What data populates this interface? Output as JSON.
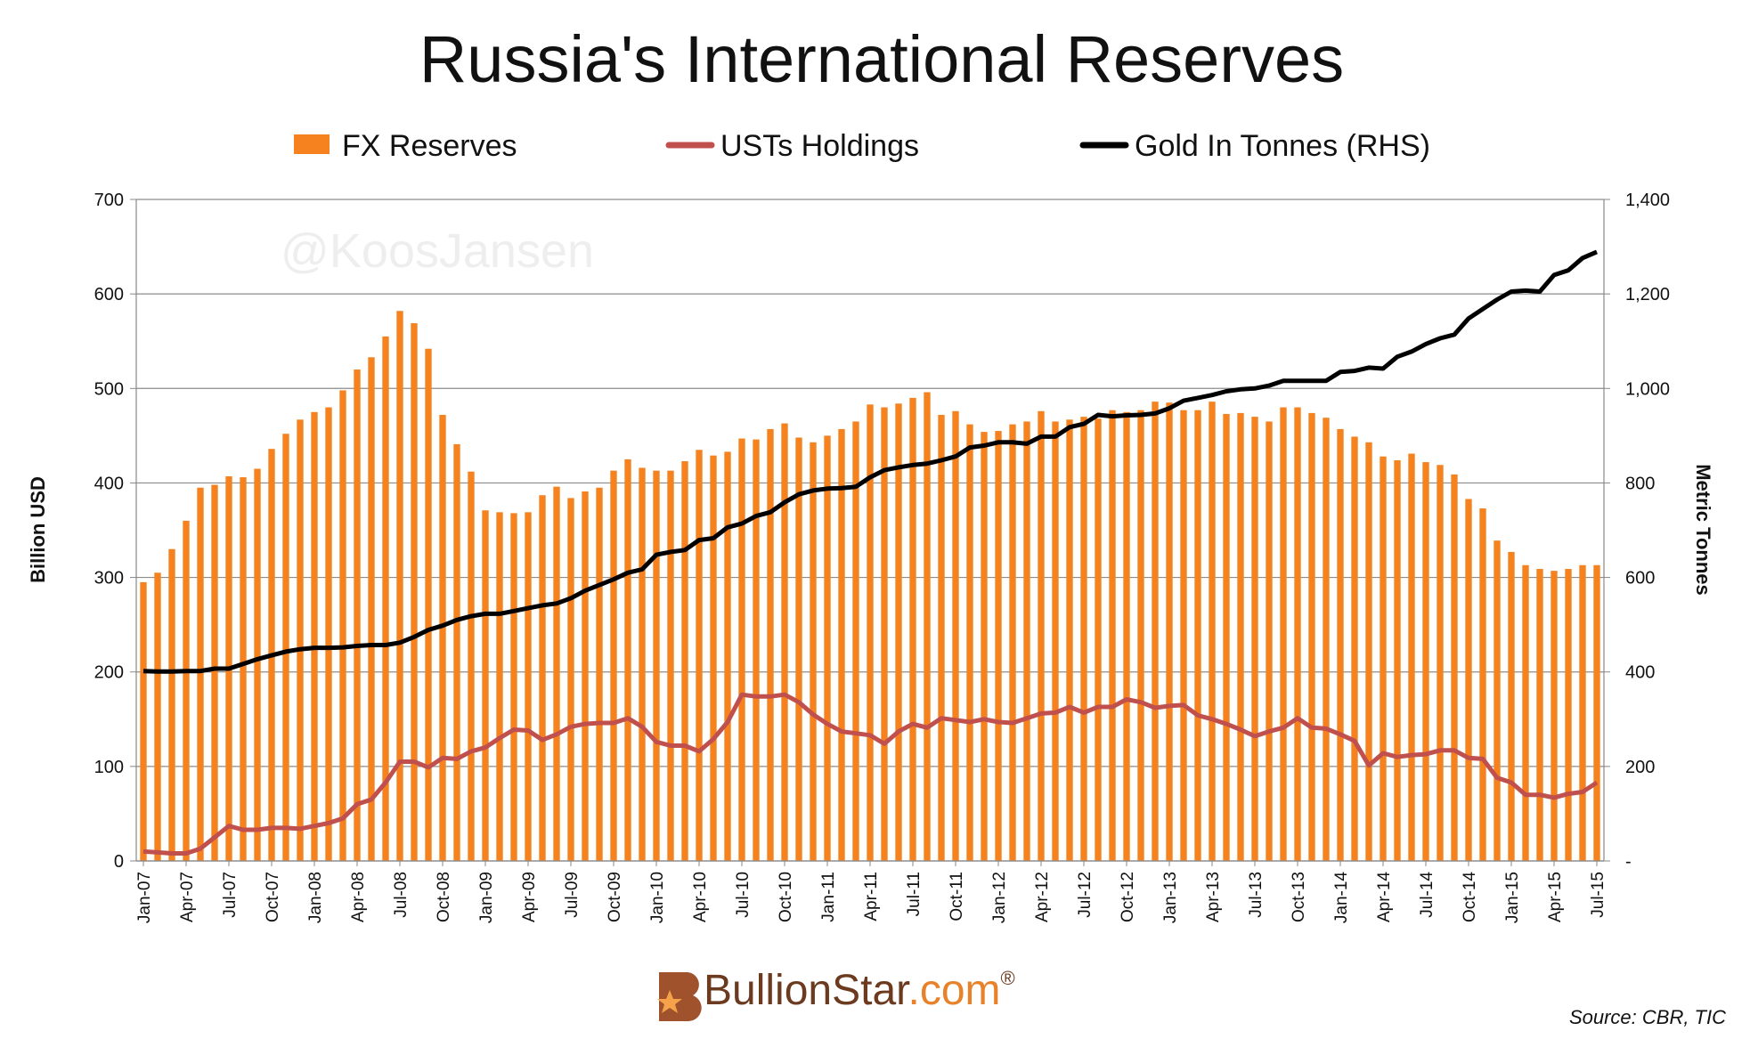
{
  "chart_data": {
    "type": "bar",
    "title": "Russia's International Reserves",
    "watermark": "@KoosJansen",
    "ylabel": "Billion USD",
    "y2label": "Metric Tonnes",
    "source": "Source: CBR, TIC",
    "logo": {
      "part1": "BullionStar",
      "part2": ".com",
      "mark": "®"
    },
    "grid": true,
    "categories": [
      "Jan-07",
      null,
      null,
      "Apr-07",
      null,
      null,
      "Jul-07",
      null,
      null,
      "Oct-07",
      null,
      null,
      "Jan-08",
      null,
      null,
      "Apr-08",
      null,
      null,
      "Jul-08",
      null,
      null,
      "Oct-08",
      null,
      null,
      "Jan-09",
      null,
      null,
      "Apr-09",
      null,
      null,
      "Jul-09",
      null,
      null,
      "Oct-09",
      null,
      null,
      "Jan-10",
      null,
      null,
      "Apr-10",
      null,
      null,
      "Jul-10",
      null,
      null,
      "Oct-10",
      null,
      null,
      "Jan-11",
      null,
      null,
      "Apr-11",
      null,
      null,
      "Jul-11",
      null,
      null,
      "Oct-11",
      null,
      null,
      "Jan-12",
      null,
      null,
      "Apr-12",
      null,
      null,
      "Jul-12",
      null,
      null,
      "Oct-12",
      null,
      null,
      "Jan-13",
      null,
      null,
      "Apr-13",
      null,
      null,
      "Jul-13",
      null,
      null,
      "Oct-13",
      null,
      null,
      "Jan-14",
      null,
      null,
      "Apr-14",
      null,
      null,
      "Jul-14",
      null,
      null,
      "Oct-14",
      null,
      null,
      "Jan-15",
      null,
      null,
      "Apr-15",
      null,
      null,
      "Jul-15"
    ],
    "ylim": [
      0,
      700
    ],
    "yticks": [
      0,
      100,
      200,
      300,
      400,
      500,
      600,
      700
    ],
    "y2lim": [
      0,
      1400
    ],
    "y2ticks": [
      {
        "value": 0,
        "label": "-"
      },
      200,
      400,
      600,
      800,
      {
        "value": 1000,
        "label": "1,000"
      },
      {
        "value": 1200,
        "label": "1,200"
      },
      {
        "value": 1400,
        "label": "1,400"
      }
    ],
    "series": [
      {
        "name": "FX Reserves",
        "type": "bar",
        "color": "#f5821f",
        "values": [
          295,
          305,
          330,
          360,
          395,
          398,
          407,
          406,
          415,
          436,
          452,
          467,
          475,
          480,
          498,
          520,
          533,
          555,
          582,
          569,
          542,
          472,
          441,
          412,
          371,
          369,
          368,
          369,
          387,
          396,
          384,
          391,
          395,
          413,
          425,
          416,
          413,
          413,
          423,
          435,
          429,
          433,
          447,
          446,
          457,
          463,
          448,
          443,
          450,
          457,
          465,
          483,
          480,
          484,
          490,
          496,
          472,
          476,
          462,
          454,
          455,
          462,
          465,
          476,
          465,
          467,
          470,
          468,
          477,
          475,
          477,
          486,
          485,
          477,
          477,
          486,
          473,
          474,
          470,
          465,
          480,
          480,
          474,
          469,
          457,
          449,
          443,
          428,
          424,
          431,
          422,
          419,
          409,
          383,
          373,
          339,
          327,
          313,
          309,
          307,
          309,
          313,
          313
        ]
      },
      {
        "name": "USTs Holdings",
        "type": "line",
        "color": "#c0504d",
        "values": [
          10,
          9,
          8,
          8,
          13,
          25,
          37,
          33,
          33,
          35,
          35,
          34,
          37,
          40,
          45,
          60,
          65,
          83,
          105,
          105,
          99,
          109,
          108,
          116,
          120,
          130,
          139,
          138,
          128,
          134,
          142,
          145,
          146,
          146,
          151,
          142,
          126,
          122,
          122,
          116,
          129,
          147,
          176,
          174,
          174,
          176,
          168,
          155,
          145,
          137,
          135,
          133,
          124,
          137,
          145,
          141,
          151,
          149,
          147,
          150,
          147,
          146,
          151,
          156,
          157,
          163,
          157,
          163,
          163,
          171,
          168,
          162,
          164,
          165,
          154,
          150,
          145,
          139,
          132,
          137,
          141,
          151,
          141,
          140,
          134,
          127,
          101,
          114,
          110,
          112,
          113,
          117,
          117,
          109,
          108,
          88,
          83,
          70,
          70,
          67,
          71,
          73,
          83
        ]
      },
      {
        "name": "Gold In Tonnes (RHS)",
        "type": "line",
        "axis": "y2",
        "color": "#000000",
        "values": [
          402,
          401,
          401,
          402,
          402,
          407,
          407,
          417,
          427,
          435,
          443,
          448,
          451,
          451,
          452,
          455,
          457,
          457,
          462,
          474,
          489,
          498,
          510,
          518,
          523,
          523,
          529,
          535,
          541,
          545,
          556,
          572,
          584,
          596,
          610,
          617,
          648,
          654,
          658,
          679,
          683,
          706,
          714,
          730,
          738,
          759,
          776,
          784,
          788,
          789,
          792,
          812,
          827,
          833,
          838,
          841,
          848,
          856,
          875,
          879,
          886,
          886,
          883,
          898,
          898,
          918,
          925,
          944,
          941,
          943,
          944,
          947,
          958,
          974,
          980,
          986,
          994,
          998,
          1000,
          1006,
          1016,
          1016,
          1016,
          1016,
          1035,
          1037,
          1044,
          1042,
          1067,
          1078,
          1094,
          1106,
          1114,
          1148,
          1168,
          1188,
          1205,
          1207,
          1205,
          1240,
          1250,
          1276,
          1289
        ]
      }
    ]
  }
}
